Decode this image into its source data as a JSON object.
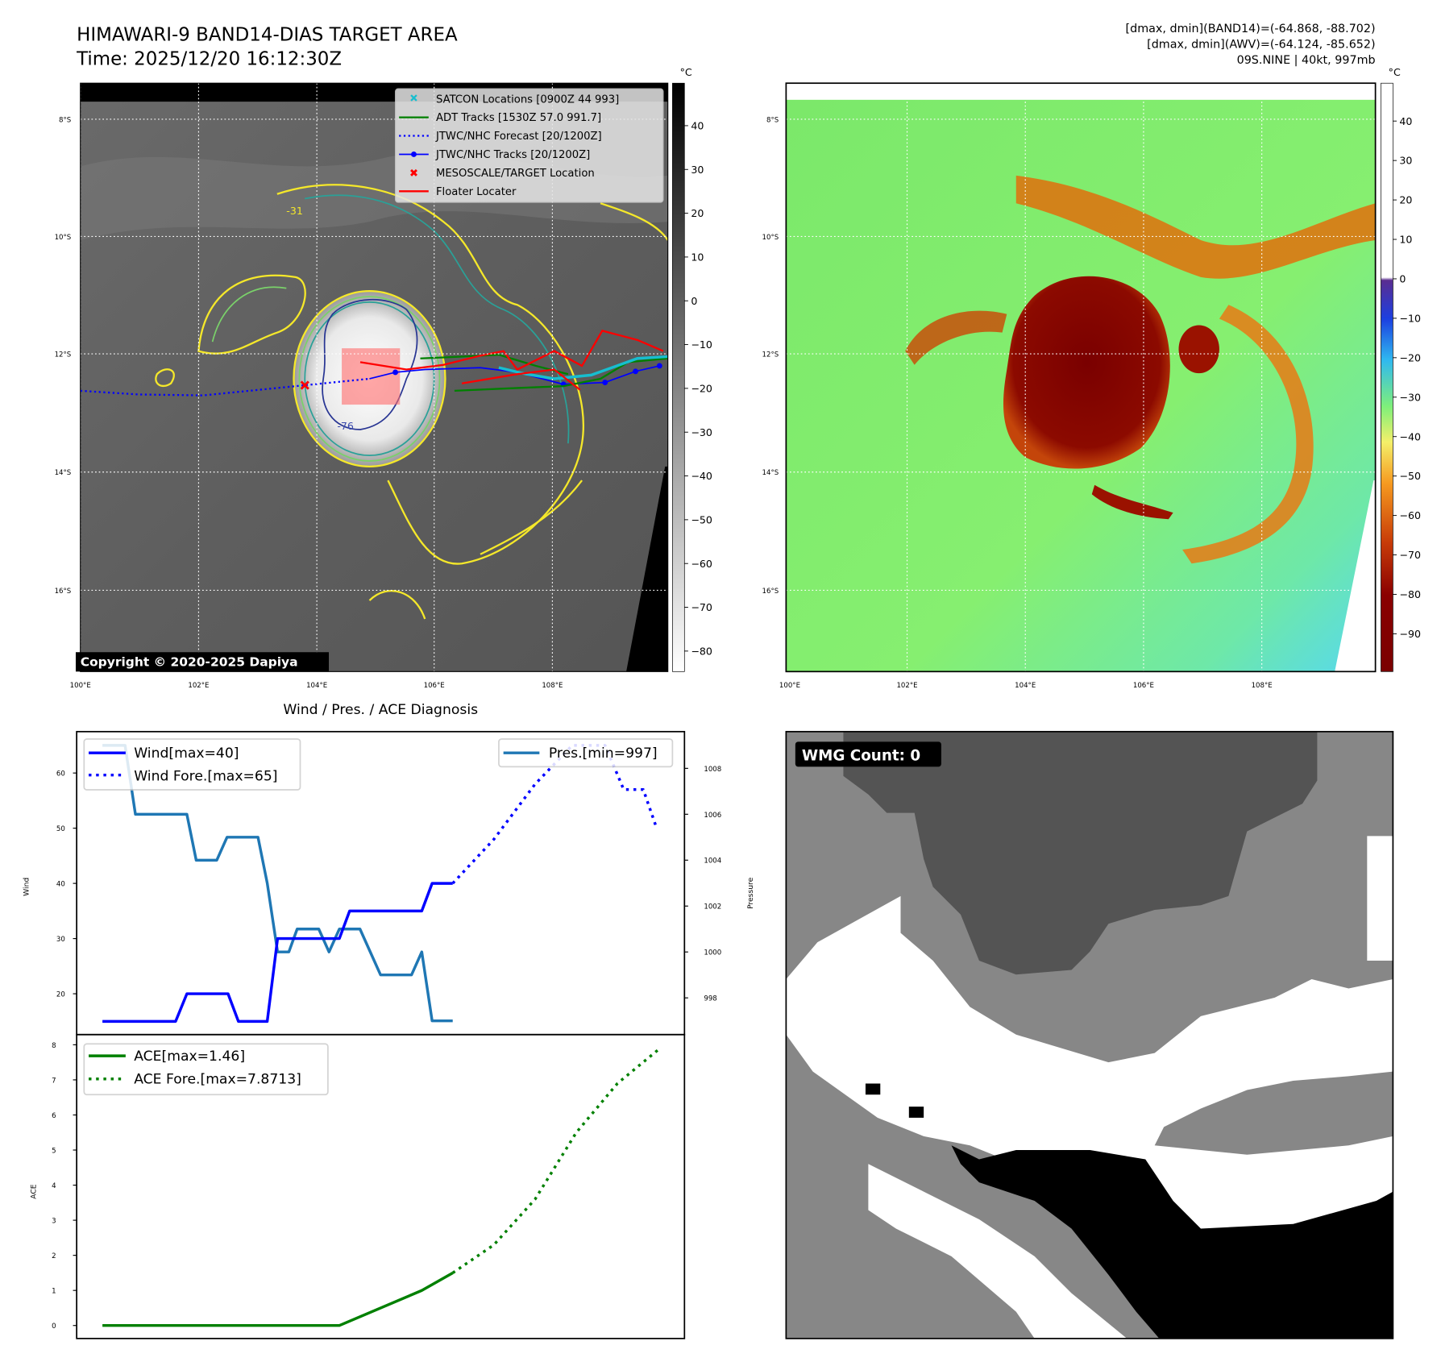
{
  "header": {
    "title": "HIMAWARI-9 BAND14-DIAS TARGET AREA",
    "time": "Time: 2025/12/20 16:12:30Z",
    "stats_band14": "[dmax, dmin](BAND14)=(-64.868, -88.702)",
    "stats_awv": "[dmax, dmin](AWV)=(-64.124, -85.652)",
    "storm": "09S.NINE | 40kt, 997mb"
  },
  "map_left": {
    "lat_labels": [
      "8°S",
      "10°S",
      "12°S",
      "14°S",
      "16°S"
    ],
    "lon_labels": [
      "100°E",
      "102°E",
      "104°E",
      "106°E",
      "108°E"
    ],
    "colorbar_unit": "°C",
    "colorbar_ticks": [
      "40",
      "30",
      "20",
      "10",
      "0",
      "−10",
      "−20",
      "−30",
      "−40",
      "−50",
      "−60",
      "−70",
      "−80"
    ],
    "contour_labels": [
      "-31",
      "-76"
    ],
    "copyright": "Copyright © 2020-2025 Dapiya",
    "legend": [
      {
        "label": "SATCON Locations [0900Z 44 993]",
        "color": "#17becf",
        "marker": "x-icon"
      },
      {
        "label": "ADT Tracks [1530Z 57.0 991.7]",
        "color": "#008000",
        "marker": "line-icon"
      },
      {
        "label": "JTWC/NHC Forecast [20/1200Z]",
        "color": "#0000ff",
        "marker": "dotted-line-icon"
      },
      {
        "label": "JTWC/NHC Tracks [20/1200Z]",
        "color": "#0000ff",
        "marker": "line-dot-icon"
      },
      {
        "label": "MESOSCALE/TARGET Location",
        "color": "#ff0000",
        "marker": "x-icon"
      },
      {
        "label": "Floater Locater",
        "color": "#ff0000",
        "marker": "line-icon"
      }
    ]
  },
  "map_right": {
    "lat_labels": [
      "8°S",
      "10°S",
      "12°S",
      "14°S",
      "16°S"
    ],
    "lon_labels": [
      "100°E",
      "102°E",
      "104°E",
      "106°E",
      "108°E"
    ],
    "colorbar_unit": "°C",
    "colorbar_ticks": [
      "40",
      "30",
      "20",
      "10",
      "0",
      "−10",
      "−20",
      "−30",
      "−40",
      "−50",
      "−60",
      "−70",
      "−80",
      "−90"
    ]
  },
  "wmg": {
    "label": "WMG Count: 0"
  },
  "chart_data": [
    {
      "type": "line",
      "title": "Wind / Pres. / ACE Diagnosis",
      "xlabel": "",
      "ylabel": "Wind",
      "y2label": "Pressure",
      "ylim": [
        12.6,
        67.5
      ],
      "y2lim": [
        996.4,
        1009.6
      ],
      "xlim": [
        -2.5,
        56.5
      ],
      "yticks": [
        "20",
        "30",
        "40",
        "50",
        "60"
      ],
      "y2ticks": [
        "998",
        "1000",
        "1002",
        "1004",
        "1006",
        "1008"
      ],
      "series": [
        {
          "name": "Wind[max=40]",
          "color": "#0000ff",
          "style": "solid",
          "axis": "left",
          "x": [
            0,
            7.1,
            8.2,
            12.2,
            13.2,
            16,
            17,
            23,
            24,
            31,
            32,
            34
          ],
          "values": [
            15,
            15,
            20,
            20,
            15,
            15,
            30,
            30,
            35,
            35,
            40,
            40
          ]
        },
        {
          "name": "Wind Fore.[max=65]",
          "color": "#0000ff",
          "style": "dotted",
          "axis": "left",
          "x": [
            34,
            38,
            42,
            45.6,
            48.8,
            50.6,
            52.5,
            53.8
          ],
          "values": [
            40,
            48,
            58,
            65,
            65,
            57,
            57,
            50
          ]
        },
        {
          "name": "Pres.[min=997]",
          "color": "#1f77b4",
          "style": "solid",
          "axis": "right",
          "x": [
            0,
            2.2,
            3.2,
            8.2,
            9.1,
            11.1,
            12.1,
            15.1,
            16,
            17,
            18.1,
            18.9,
            21,
            22,
            23,
            25,
            27,
            30,
            31,
            32,
            34
          ],
          "values": [
            1009,
            1009,
            1006,
            1006,
            1004,
            1004,
            1005,
            1005,
            1003,
            1000,
            1000,
            1001,
            1001,
            1000,
            1001,
            1001,
            999,
            999,
            1000,
            997,
            997
          ]
        }
      ]
    },
    {
      "type": "line",
      "title": "",
      "ylabel": "ACE",
      "ylim": [
        -0.37,
        8.29
      ],
      "xlim": [
        -2.5,
        56.5
      ],
      "yticks": [
        "0",
        "1",
        "2",
        "3",
        "4",
        "5",
        "6",
        "7",
        "8"
      ],
      "series": [
        {
          "name": "ACE[max=1.46]",
          "color": "#008000",
          "style": "solid",
          "x": [
            0,
            23,
            31,
            34
          ],
          "values": [
            0,
            0,
            1,
            1.5
          ]
        },
        {
          "name": "ACE Fore.[max=7.8713]",
          "color": "#008000",
          "style": "dotted",
          "x": [
            34,
            38,
            42,
            46,
            50,
            54
          ],
          "values": [
            1.5,
            2.3,
            3.6,
            5.5,
            6.9,
            7.87
          ]
        }
      ]
    }
  ]
}
